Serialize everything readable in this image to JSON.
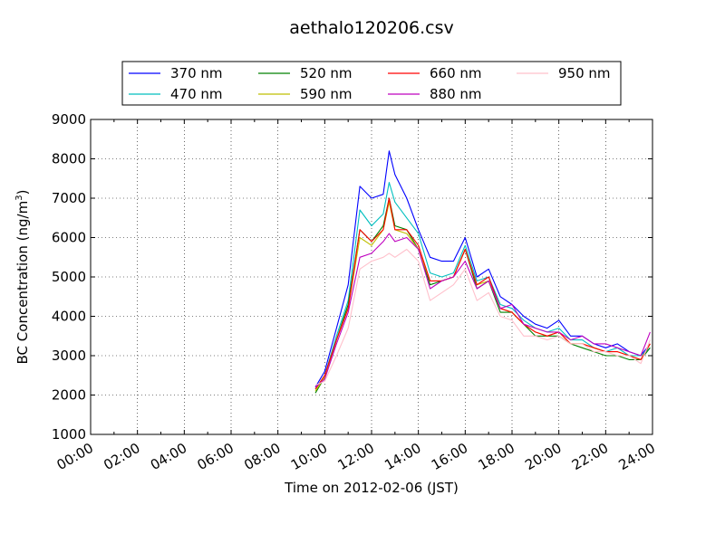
{
  "chart_data": {
    "type": "line",
    "title": "aethalo120206.csv",
    "xlabel": "Time on 2012-02-06 (JST)",
    "ylabel_main": "BC Concentration (ng/m",
    "ylabel_sup": "3",
    "ylabel_close": ")",
    "x_unit": "hour",
    "xlim": [
      0,
      24
    ],
    "ylim": [
      1000,
      9000
    ],
    "xticks": [
      0,
      2,
      4,
      6,
      8,
      10,
      12,
      14,
      16,
      18,
      20,
      22,
      24
    ],
    "xtick_labels": [
      "00:00",
      "02:00",
      "04:00",
      "06:00",
      "08:00",
      "10:00",
      "12:00",
      "14:00",
      "16:00",
      "18:00",
      "20:00",
      "22:00",
      "24:00"
    ],
    "yticks": [
      1000,
      2000,
      3000,
      4000,
      5000,
      6000,
      7000,
      8000,
      9000
    ],
    "ytick_labels": [
      "1000",
      "2000",
      "3000",
      "4000",
      "5000",
      "6000",
      "7000",
      "8000",
      "9000"
    ],
    "grid": true,
    "legend_placement": "above plot, centered, 4 columns",
    "x": [
      9.6,
      10.0,
      10.5,
      11.0,
      11.5,
      12.0,
      12.5,
      12.75,
      13.0,
      13.5,
      14.0,
      14.5,
      15.0,
      15.5,
      16.0,
      16.5,
      17.0,
      17.5,
      18.0,
      18.5,
      19.0,
      19.5,
      20.0,
      20.5,
      21.0,
      21.5,
      22.0,
      22.5,
      23.0,
      23.5,
      23.9
    ],
    "series": [
      {
        "name": "370 nm",
        "color": "#0000ff",
        "values": [
          2200,
          2600,
          3700,
          4800,
          7300,
          7000,
          7100,
          8200,
          7600,
          7000,
          6200,
          5500,
          5400,
          5400,
          6000,
          5000,
          5200,
          4500,
          4300,
          4000,
          3800,
          3700,
          3900,
          3500,
          3500,
          3300,
          3200,
          3300,
          3100,
          3000,
          3300
        ]
      },
      {
        "name": "470 nm",
        "color": "#00bfbf",
        "values": [
          2150,
          2500,
          3500,
          4400,
          6700,
          6300,
          6600,
          7400,
          6900,
          6500,
          6100,
          5100,
          5000,
          5100,
          5800,
          4900,
          5000,
          4300,
          4200,
          3900,
          3700,
          3600,
          3700,
          3400,
          3400,
          3200,
          3100,
          3200,
          3000,
          3000,
          3200
        ]
      },
      {
        "name": "520 nm",
        "color": "#008000",
        "values": [
          2050,
          2450,
          3400,
          4300,
          6200,
          5900,
          6300,
          7000,
          6300,
          6200,
          5700,
          4800,
          4900,
          5000,
          5700,
          4700,
          4900,
          4100,
          4100,
          3800,
          3500,
          3500,
          3500,
          3300,
          3200,
          3100,
          3000,
          3000,
          2900,
          2900,
          3200
        ]
      },
      {
        "name": "590 nm",
        "color": "#bfbf00",
        "values": [
          2100,
          2450,
          3400,
          4200,
          6000,
          5800,
          6200,
          6900,
          6200,
          6100,
          5700,
          4900,
          4900,
          5000,
          5700,
          4800,
          4900,
          4200,
          4100,
          3800,
          3600,
          3500,
          3600,
          3300,
          3300,
          3200,
          3100,
          3100,
          3000,
          2900,
          3300
        ]
      },
      {
        "name": "660 nm",
        "color": "#ff0000",
        "values": [
          2150,
          2500,
          3400,
          4200,
          6200,
          5900,
          6200,
          7000,
          6200,
          6200,
          5800,
          4900,
          4900,
          5000,
          5700,
          4800,
          5000,
          4200,
          4100,
          3800,
          3600,
          3500,
          3600,
          3300,
          3300,
          3200,
          3100,
          3100,
          3000,
          2900,
          3300
        ]
      },
      {
        "name": "880 nm",
        "color": "#bf00bf",
        "values": [
          2200,
          2400,
          3300,
          4100,
          5500,
          5600,
          5900,
          6100,
          5900,
          6000,
          5700,
          4700,
          4900,
          5000,
          5400,
          4700,
          4900,
          4200,
          4300,
          3800,
          3700,
          3600,
          3600,
          3400,
          3500,
          3300,
          3300,
          3200,
          3100,
          3000,
          3600
        ]
      },
      {
        "name": "950 nm",
        "color": "#ffc0cb",
        "values": [
          2250,
          2350,
          3000,
          3700,
          5200,
          5400,
          5500,
          5600,
          5500,
          5700,
          5400,
          4400,
          4600,
          4800,
          5200,
          4400,
          4600,
          4000,
          3900,
          3500,
          3500,
          3400,
          3500,
          3300,
          3300,
          3100,
          3100,
          3000,
          3000,
          2800,
          3400
        ]
      }
    ]
  }
}
